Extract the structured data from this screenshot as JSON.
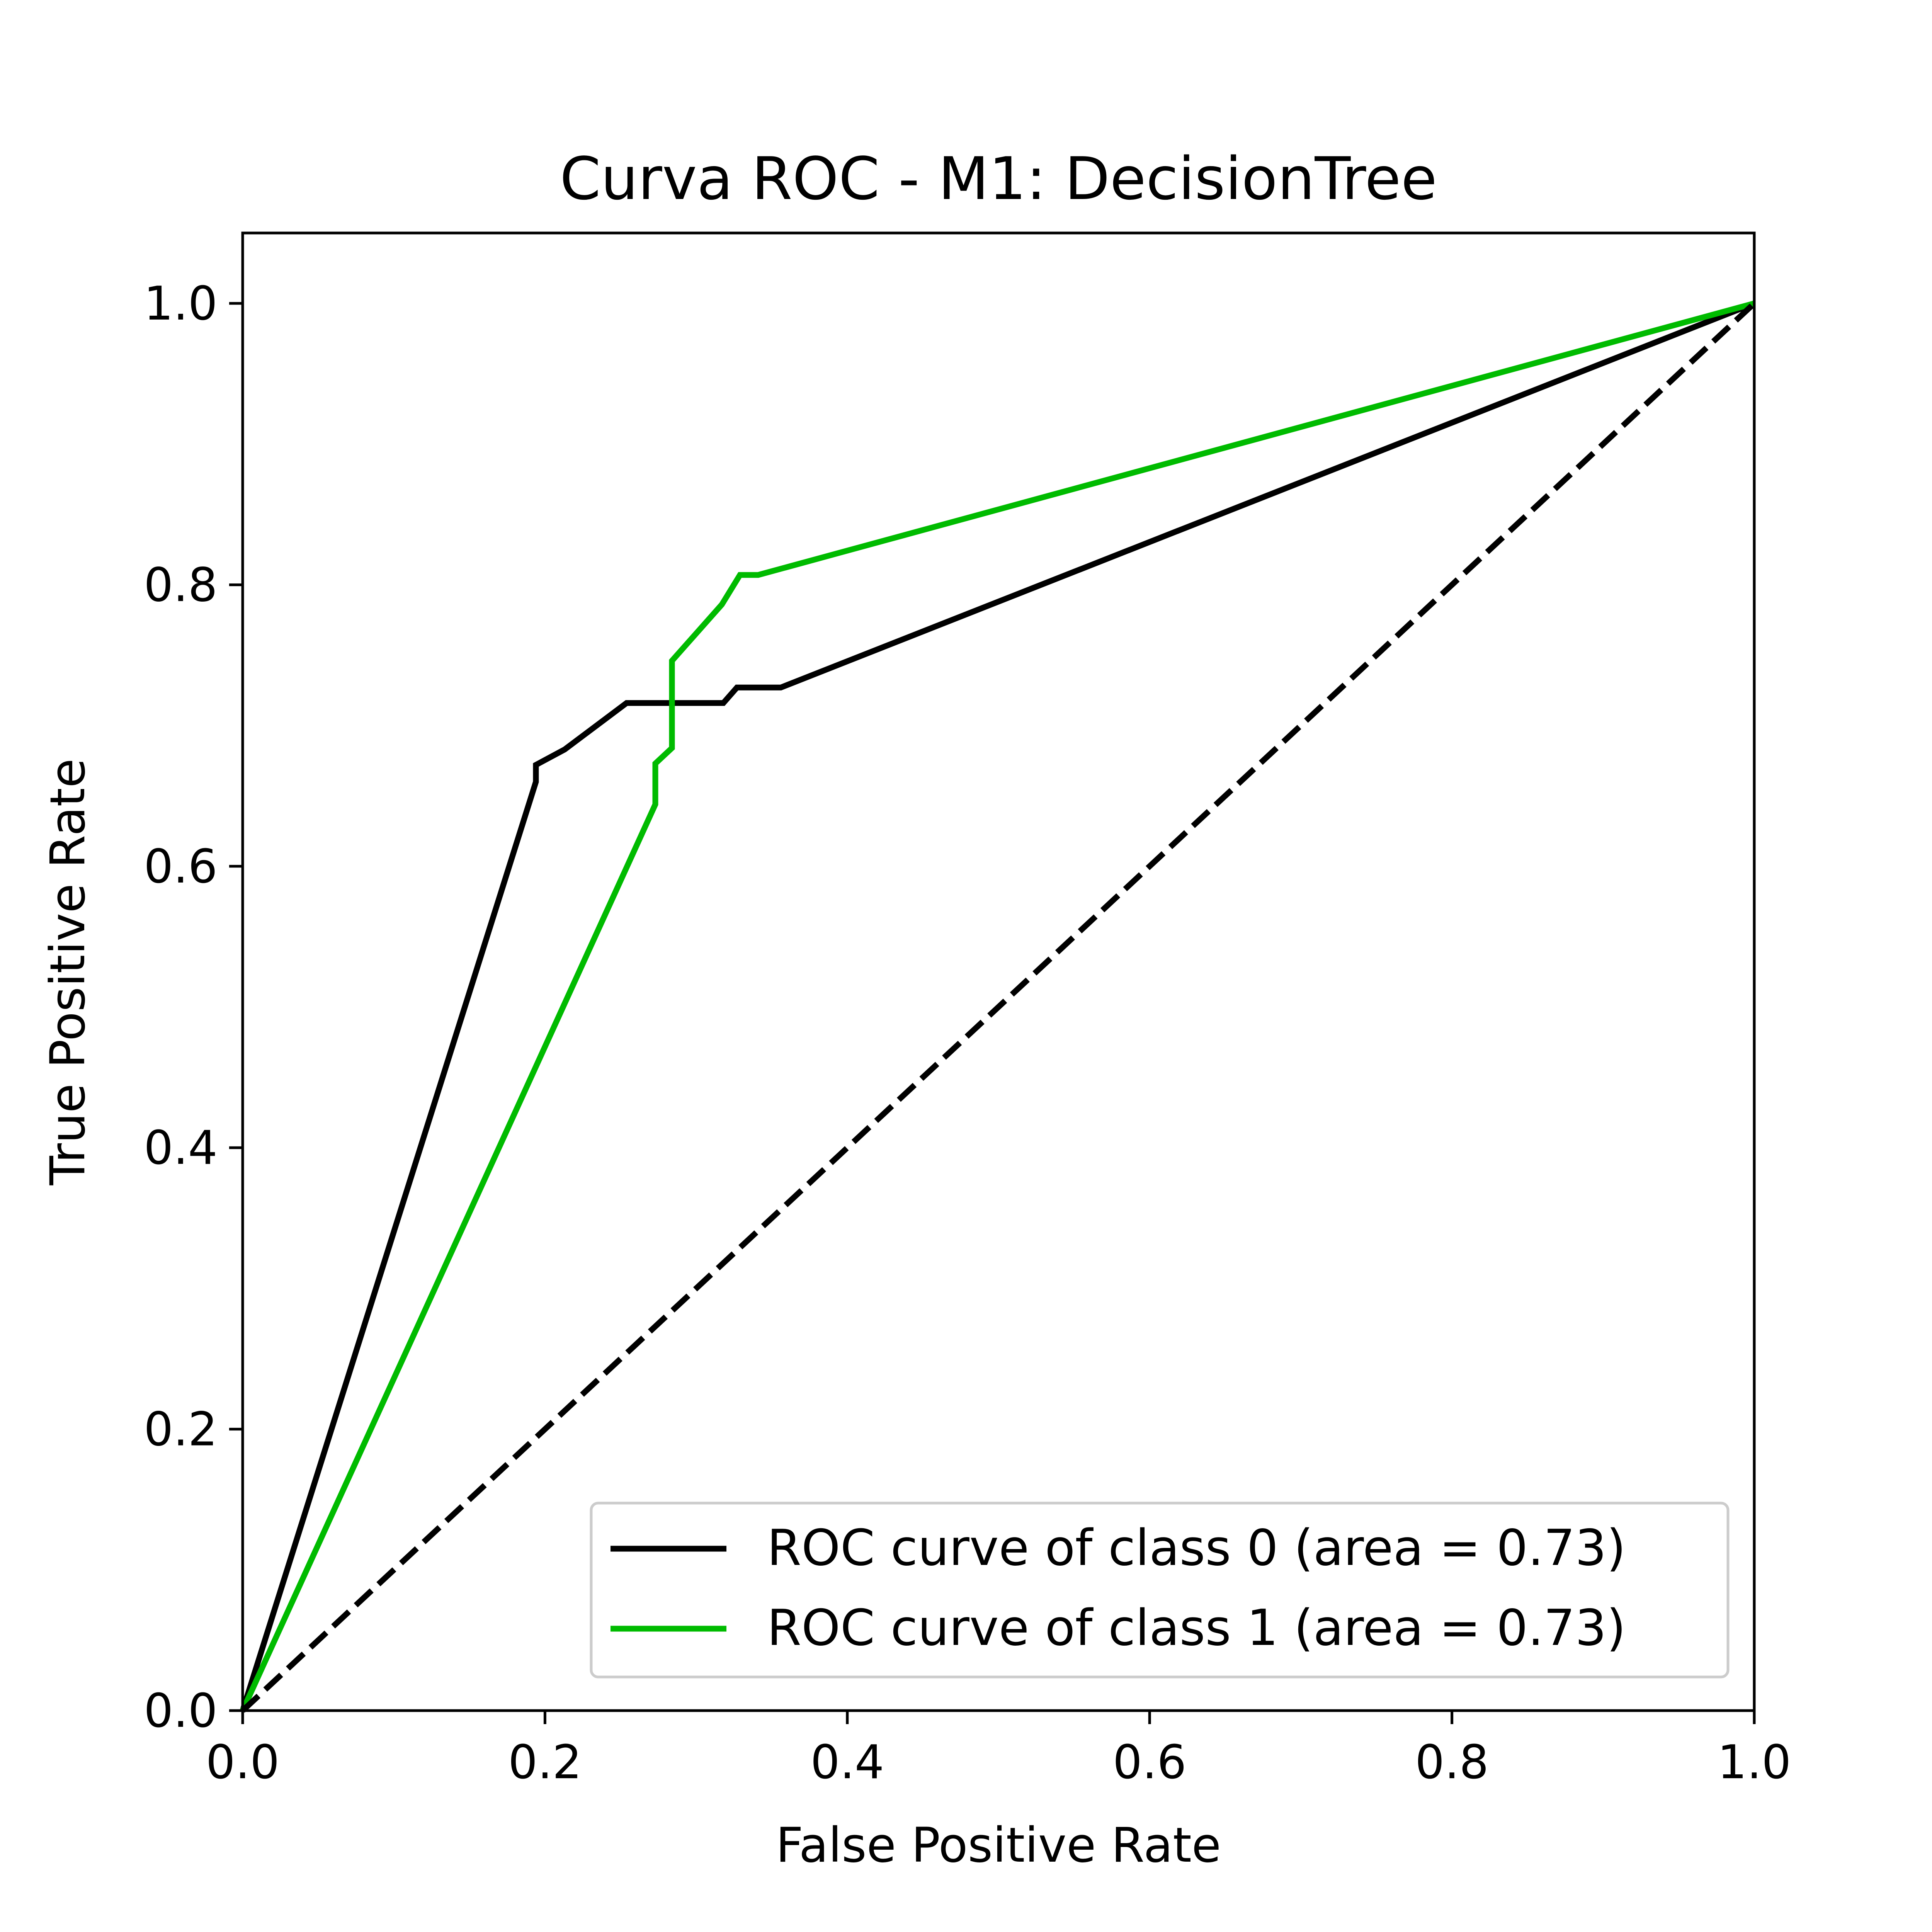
{
  "chart_data": {
    "type": "line",
    "title": "Curva ROC - M1: DecisionTree",
    "xlabel": "False Positive Rate",
    "ylabel": "True Positive Rate",
    "xlim": [
      0.0,
      1.0
    ],
    "ylim": [
      0.0,
      1.05
    ],
    "x_ticks": [
      "0.0",
      "0.2",
      "0.4",
      "0.6",
      "0.8",
      "1.0"
    ],
    "y_ticks": [
      "0.0",
      "0.2",
      "0.4",
      "0.6",
      "0.8",
      "1.0"
    ],
    "grid": false,
    "legend_position": "lower-right",
    "series": [
      {
        "name": "ROC curve of class 0 (area = 0.73)",
        "color": "#000000",
        "style": "solid",
        "points": [
          [
            0.0,
            0.0
          ],
          [
            0.194,
            0.66
          ],
          [
            0.194,
            0.672
          ],
          [
            0.213,
            0.683
          ],
          [
            0.254,
            0.716
          ],
          [
            0.318,
            0.716
          ],
          [
            0.327,
            0.727
          ],
          [
            0.356,
            0.727
          ],
          [
            1.0,
            1.0
          ]
        ]
      },
      {
        "name": "ROC curve of class 1 (area = 0.73)",
        "color": "#00bb00",
        "style": "solid",
        "points": [
          [
            0.0,
            0.0
          ],
          [
            0.273,
            0.644
          ],
          [
            0.273,
            0.673
          ],
          [
            0.284,
            0.684
          ],
          [
            0.284,
            0.746
          ],
          [
            0.317,
            0.786
          ],
          [
            0.329,
            0.807
          ],
          [
            0.341,
            0.807
          ],
          [
            1.0,
            1.0
          ]
        ]
      },
      {
        "name": "",
        "color": "#000000",
        "style": "dashed",
        "points": [
          [
            0.0,
            0.0
          ],
          [
            1.0,
            1.0
          ]
        ]
      }
    ]
  }
}
